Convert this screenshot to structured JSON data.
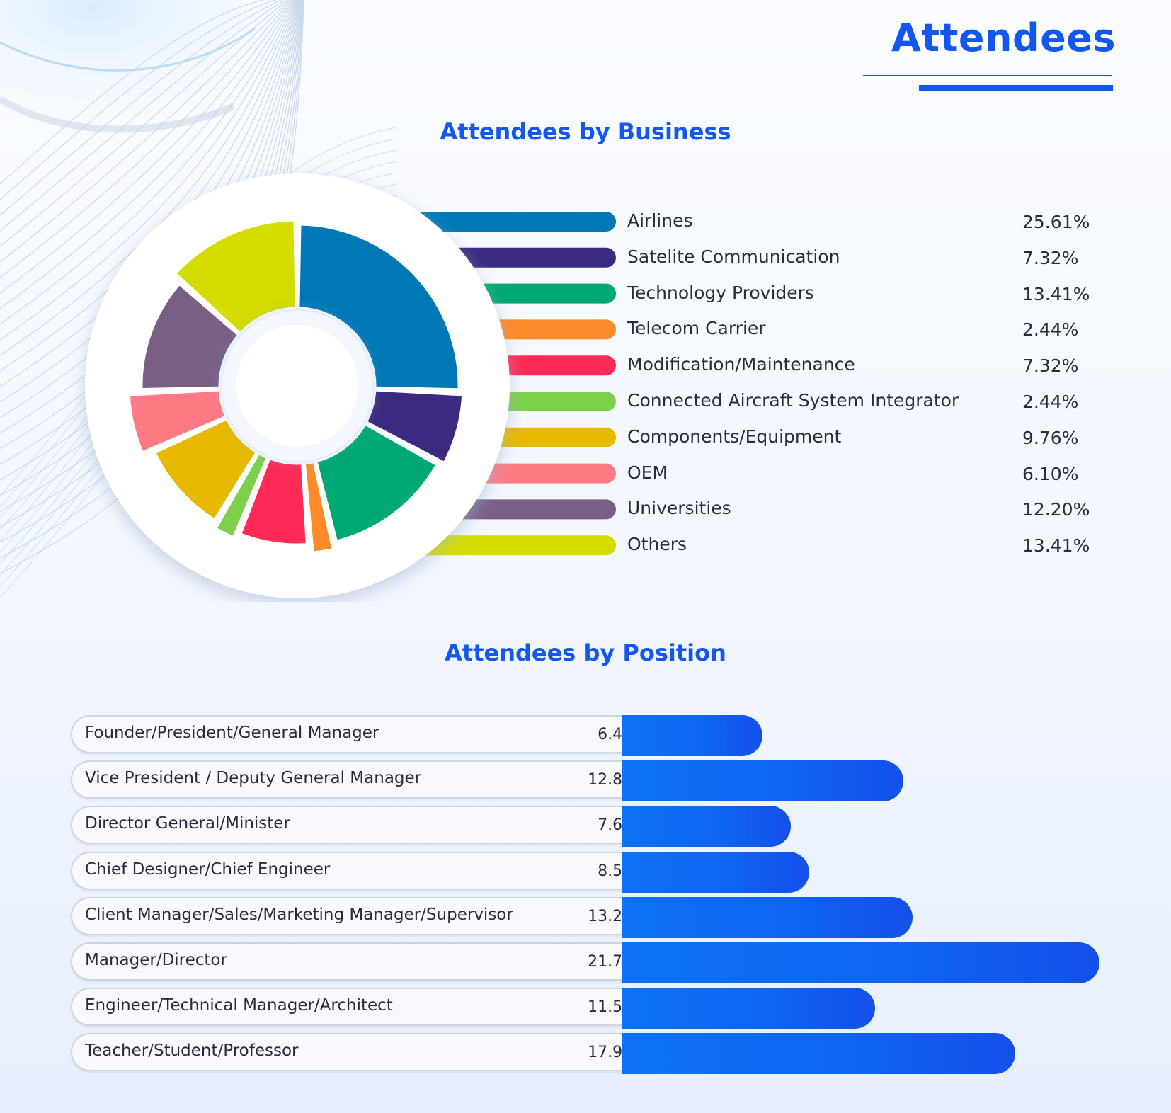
{
  "page": {
    "title": "Attendees",
    "accent_color": "#1357f0"
  },
  "chart_data": [
    {
      "type": "pie",
      "title": "Attendees by Business",
      "categories": [
        "Airlines",
        "Satelite Communication",
        "Technology Providers",
        "Telecom Carrier",
        "Modification/Maintenance",
        "Connected Aircraft System Integrator",
        "Components/Equipment",
        "OEM",
        "Universities",
        "Others"
      ],
      "values": [
        25.61,
        7.32,
        13.41,
        2.44,
        7.32,
        2.44,
        9.76,
        6.1,
        12.2,
        13.41
      ],
      "value_labels": [
        "25.61%",
        "7.32%",
        "13.41%",
        "2.44%",
        "7.32%",
        "2.44%",
        "9.76%",
        "6.10%",
        "12.20%",
        "13.41%"
      ],
      "colors": [
        "#0078b6",
        "#3b2a80",
        "#00a874",
        "#ff8a2a",
        "#ff2a55",
        "#7dd14a",
        "#e6b800",
        "#ff7a85",
        "#7a5f85",
        "#d4dc00"
      ],
      "legend": "right"
    },
    {
      "type": "bar",
      "orientation": "horizontal",
      "title": "Attendees by Position",
      "categories": [
        "Founder/President/General Manager",
        "Vice President / Deputy General Manager",
        "Director General/Minister",
        "Chief Designer/Chief Engineer",
        "Client Manager/Sales/Marketing Manager/Supervisor",
        "Manager/Director",
        "Engineer/Technical Manager/Architect",
        "Teacher/Student/Professor"
      ],
      "values": [
        6.41,
        12.82,
        7.69,
        8.55,
        13.25,
        21.79,
        11.54,
        17.95
      ],
      "value_labels": [
        "6.41%",
        "12.82%",
        "7.69%",
        "8.55%",
        "13.25%",
        "21.79%",
        "11.54%",
        "17.95%"
      ],
      "color": "#0d6af4"
    }
  ]
}
